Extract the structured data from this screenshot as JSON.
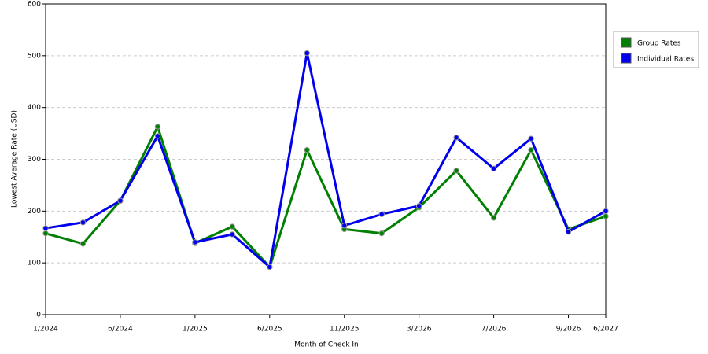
{
  "chart_data": {
    "type": "line",
    "x_label": "Month of Check In",
    "y_label": "Lowest Average Rate (USD)",
    "categories": [
      "1/2024",
      null,
      "6/2024",
      null,
      "1/2025",
      null,
      "6/2025",
      null,
      "11/2025",
      null,
      "3/2026",
      null,
      "7/2026",
      null,
      "9/2026",
      "6/2027"
    ],
    "series": [
      {
        "name": "Group Rates",
        "color": "#008000",
        "values": [
          157,
          137,
          220,
          363,
          138,
          170,
          92,
          318,
          165,
          157,
          207,
          278,
          187,
          318,
          165,
          190
        ]
      },
      {
        "name": "Individual Rates",
        "color": "#0000ee",
        "values": [
          167,
          178,
          220,
          345,
          140,
          155,
          92,
          505,
          172,
          194,
          210,
          342,
          282,
          340,
          160,
          200
        ]
      }
    ],
    "ylim": [
      0,
      600
    ],
    "yticks": [
      0,
      100,
      200,
      300,
      400,
      500,
      600
    ],
    "grid": true,
    "legend": "right"
  }
}
